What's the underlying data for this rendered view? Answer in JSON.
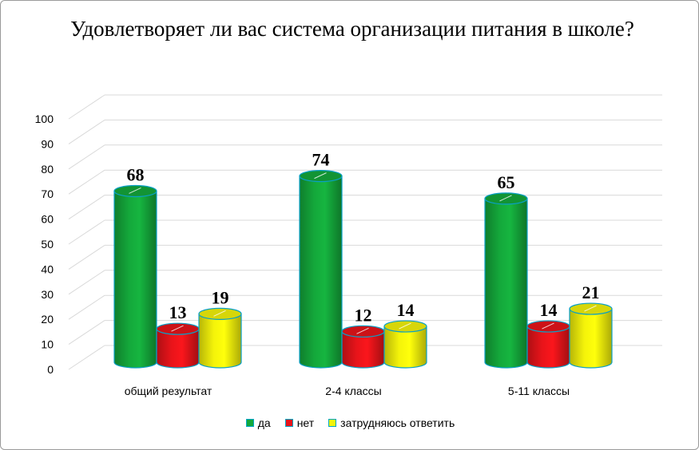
{
  "chart_data": {
    "type": "bar",
    "title": "Удовлетворяет ли вас система организации питания в школе?",
    "categories": [
      "общий результат",
      "2-4 классы",
      "5-11 классы"
    ],
    "series": [
      {
        "name": "да",
        "values": [
          68,
          74,
          65
        ],
        "color": "#14a83b"
      },
      {
        "name": "нет",
        "values": [
          13,
          12,
          14
        ],
        "color": "#e8141a"
      },
      {
        "name": "затрудняюсь ответить",
        "values": [
          19,
          14,
          21
        ],
        "color": "#f4f30a"
      }
    ],
    "ylim": [
      0,
      100
    ],
    "yticks": [
      0,
      10,
      20,
      30,
      40,
      50,
      60,
      70,
      80,
      90,
      100
    ],
    "grid": true,
    "legend_position": "bottom",
    "style": "3d-cylinder"
  }
}
